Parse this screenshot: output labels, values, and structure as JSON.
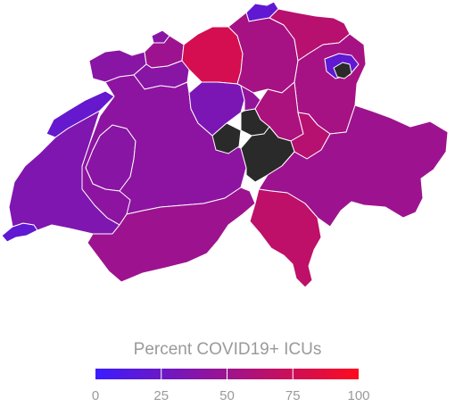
{
  "legend": {
    "title": "Percent COVID19+ ICUs",
    "ticks": [
      "0",
      "25",
      "50",
      "75",
      "100"
    ],
    "color_min": "#3a1cff",
    "color_max": "#ff0a1e"
  },
  "no_data_color": "#2a2a2a",
  "cantons": [
    {
      "name": "SH",
      "value": 20
    },
    {
      "name": "BS",
      "value": 40
    },
    {
      "name": "BL",
      "value": 50
    },
    {
      "name": "AG",
      "value": 78
    },
    {
      "name": "ZH",
      "value": 55
    },
    {
      "name": "TG",
      "value": 64
    },
    {
      "name": "SG",
      "value": 55
    },
    {
      "name": "AR",
      "value": 20
    },
    {
      "name": "AI",
      "value": null
    },
    {
      "name": "JU",
      "value": 40
    },
    {
      "name": "SO",
      "value": 40
    },
    {
      "name": "LU",
      "value": 33
    },
    {
      "name": "ZG",
      "value": 45
    },
    {
      "name": "SZ",
      "value": 58
    },
    {
      "name": "GL",
      "value": 63
    },
    {
      "name": "NW",
      "value": null
    },
    {
      "name": "OW",
      "value": null
    },
    {
      "name": "UR",
      "value": null
    },
    {
      "name": "NE",
      "value": 22
    },
    {
      "name": "BE",
      "value": 42
    },
    {
      "name": "FR",
      "value": 40
    },
    {
      "name": "VD",
      "value": 35
    },
    {
      "name": "VS",
      "value": 50
    },
    {
      "name": "GE",
      "value": 20
    },
    {
      "name": "GR",
      "value": 50
    },
    {
      "name": "TI",
      "value": 67
    }
  ]
}
